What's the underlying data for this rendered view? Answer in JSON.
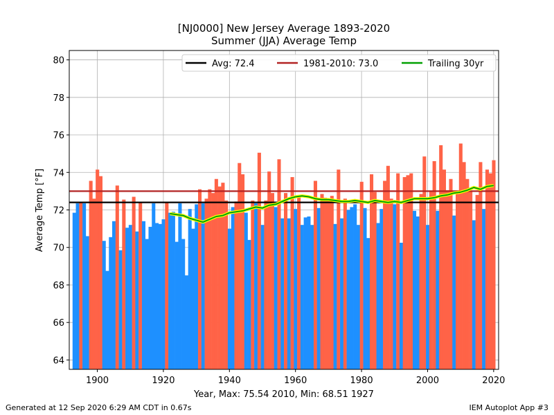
{
  "chart_data": {
    "type": "bar",
    "title": "[NJ0000] New Jersey Average 1893-2020",
    "subtitle": "Summer (JJA) Average Temp",
    "xlabel": "Year, Max: 75.54 2010, Min: 68.51 1927",
    "ylabel": "Average Temp [°F]",
    "xlim": [
      1891.5,
      2021.5
    ],
    "ylim": [
      63.5,
      80.5
    ],
    "xticks": [
      1900,
      1920,
      1940,
      1960,
      1980,
      2000,
      2020
    ],
    "yticks": [
      64,
      66,
      68,
      70,
      72,
      74,
      76,
      78,
      80
    ],
    "grid": true,
    "legend_position": "top-right",
    "baseline": 72.4,
    "colors": {
      "above": "#ff6347",
      "below": "#1e90ff",
      "avg": "#000000",
      "normal": "#b22222",
      "trailing": "#00a000",
      "trailing_halo": "#ffff00"
    },
    "series": [
      {
        "name": "Avg: 72.4",
        "kind": "hline",
        "value": 72.4
      },
      {
        "name": "1981-2010: 73.0",
        "kind": "hline",
        "value": 73.0
      },
      {
        "name": "Trailing 30yr",
        "kind": "line",
        "x": [
          1922,
          1924,
          1926,
          1928,
          1930,
          1932,
          1934,
          1936,
          1938,
          1940,
          1942,
          1944,
          1946,
          1948,
          1950,
          1952,
          1954,
          1956,
          1958,
          1960,
          1962,
          1964,
          1966,
          1968,
          1970,
          1972,
          1974,
          1976,
          1978,
          1980,
          1982,
          1984,
          1986,
          1988,
          1990,
          1992,
          1994,
          1996,
          1998,
          2000,
          2002,
          2004,
          2006,
          2008,
          2010,
          2012,
          2014,
          2016,
          2018,
          2020
        ],
        "y": [
          71.8,
          71.75,
          71.7,
          71.55,
          71.45,
          71.35,
          71.5,
          71.65,
          71.7,
          71.85,
          71.9,
          71.95,
          72.05,
          72.15,
          72.1,
          72.25,
          72.3,
          72.45,
          72.6,
          72.7,
          72.75,
          72.7,
          72.6,
          72.55,
          72.55,
          72.5,
          72.45,
          72.45,
          72.5,
          72.45,
          72.4,
          72.5,
          72.45,
          72.4,
          72.45,
          72.4,
          72.5,
          72.6,
          72.6,
          72.6,
          72.65,
          72.75,
          72.8,
          72.9,
          72.95,
          73.05,
          73.2,
          73.1,
          73.25,
          73.3
        ]
      },
      {
        "name": "Summer (JJA) Average Temp",
        "kind": "bar",
        "x": [
          1893,
          1894,
          1895,
          1896,
          1897,
          1898,
          1899,
          1900,
          1901,
          1902,
          1903,
          1904,
          1905,
          1906,
          1907,
          1908,
          1909,
          1910,
          1911,
          1912,
          1913,
          1914,
          1915,
          1916,
          1917,
          1918,
          1919,
          1920,
          1921,
          1922,
          1923,
          1924,
          1925,
          1926,
          1927,
          1928,
          1929,
          1930,
          1931,
          1932,
          1933,
          1934,
          1935,
          1936,
          1937,
          1938,
          1939,
          1940,
          1941,
          1942,
          1943,
          1944,
          1945,
          1946,
          1947,
          1948,
          1949,
          1950,
          1951,
          1952,
          1953,
          1954,
          1955,
          1956,
          1957,
          1958,
          1959,
          1960,
          1961,
          1962,
          1963,
          1964,
          1965,
          1966,
          1967,
          1968,
          1969,
          1970,
          1971,
          1972,
          1973,
          1974,
          1975,
          1976,
          1977,
          1978,
          1979,
          1980,
          1981,
          1982,
          1983,
          1984,
          1985,
          1986,
          1987,
          1988,
          1989,
          1990,
          1991,
          1992,
          1993,
          1994,
          1995,
          1996,
          1997,
          1998,
          1999,
          2000,
          2001,
          2002,
          2003,
          2004,
          2005,
          2006,
          2007,
          2008,
          2009,
          2010,
          2011,
          2012,
          2013,
          2014,
          2015,
          2016,
          2017,
          2018,
          2019,
          2020
        ],
        "values": [
          71.85,
          72.35,
          72.4,
          72.35,
          70.6,
          73.55,
          72.6,
          74.15,
          73.8,
          70.35,
          68.75,
          70.55,
          71.4,
          73.3,
          69.85,
          72.55,
          71.05,
          71.2,
          72.7,
          70.85,
          72.4,
          71.4,
          70.45,
          71.1,
          72.35,
          71.3,
          71.25,
          71.5,
          72.4,
          71.85,
          71.9,
          70.3,
          72.35,
          70.45,
          68.51,
          72.05,
          71.0,
          72.3,
          73.1,
          72.35,
          72.6,
          73.1,
          72.9,
          73.65,
          73.25,
          73.45,
          72.5,
          71.0,
          72.15,
          72.45,
          74.5,
          73.9,
          71.85,
          70.4,
          72.5,
          72.35,
          75.05,
          71.2,
          72.5,
          74.05,
          72.9,
          72.15,
          74.7,
          71.55,
          72.9,
          71.55,
          73.75,
          72.05,
          72.7,
          71.2,
          71.6,
          71.65,
          71.2,
          73.55,
          72.1,
          72.85,
          72.65,
          72.6,
          72.75,
          71.25,
          74.15,
          71.55,
          72.6,
          72.0,
          72.15,
          72.3,
          71.2,
          73.5,
          72.1,
          70.5,
          73.9,
          72.95,
          71.3,
          72.05,
          73.55,
          74.35,
          72.6,
          72.3,
          73.95,
          70.25,
          73.75,
          73.85,
          73.95,
          71.95,
          71.65,
          72.85,
          74.85,
          71.2,
          73.0,
          74.6,
          71.95,
          75.45,
          74.15,
          73.05,
          73.65,
          71.7,
          72.85,
          75.54,
          74.55,
          73.65,
          73.0,
          71.45,
          72.8,
          74.55,
          72.05,
          74.15,
          73.95,
          74.65
        ]
      }
    ]
  },
  "footer": {
    "left": "Generated at 12 Sep 2020 6:29 AM CDT in 0.67s",
    "right": "IEM Autoplot App #3"
  }
}
